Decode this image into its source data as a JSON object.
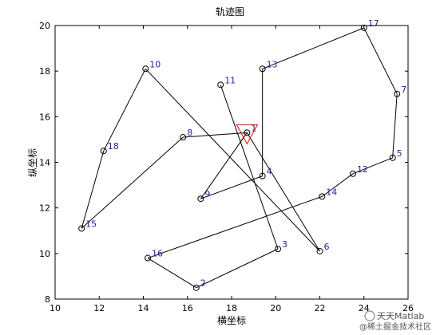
{
  "chart_data": {
    "type": "line",
    "title": "轨迹图",
    "xlabel": "横坐标",
    "ylabel": "纵坐标",
    "xlim": [
      10,
      26
    ],
    "ylim": [
      8,
      20
    ],
    "xticks": [
      10,
      12,
      14,
      16,
      18,
      20,
      22,
      24,
      26
    ],
    "yticks": [
      8,
      10,
      12,
      14,
      16,
      18,
      20
    ],
    "grid": false,
    "line_color": "#000000",
    "label_color": "#1f1fa0",
    "marker": "circle",
    "points": [
      {
        "label": "1",
        "x": 18.7,
        "y": 15.3
      },
      {
        "label": "2",
        "x": 16.4,
        "y": 8.5
      },
      {
        "label": "3",
        "x": 20.1,
        "y": 10.2
      },
      {
        "label": "4",
        "x": 19.4,
        "y": 13.4
      },
      {
        "label": "5",
        "x": 25.3,
        "y": 14.2
      },
      {
        "label": "6",
        "x": 22.0,
        "y": 10.1
      },
      {
        "label": "7",
        "x": 25.5,
        "y": 17.0
      },
      {
        "label": "8",
        "x": 15.8,
        "y": 15.1
      },
      {
        "label": "9",
        "x": 16.6,
        "y": 12.4
      },
      {
        "label": "10",
        "x": 14.1,
        "y": 18.1
      },
      {
        "label": "11",
        "x": 17.5,
        "y": 17.4
      },
      {
        "label": "12",
        "x": 23.5,
        "y": 13.5
      },
      {
        "label": "13",
        "x": 19.4,
        "y": 18.1
      },
      {
        "label": "14",
        "x": 22.1,
        "y": 12.5
      },
      {
        "label": "15",
        "x": 11.2,
        "y": 11.1
      },
      {
        "label": "16",
        "x": 14.2,
        "y": 9.8
      },
      {
        "label": "17",
        "x": 24.0,
        "y": 19.9
      },
      {
        "label": "18",
        "x": 12.2,
        "y": 14.5
      }
    ],
    "route": [
      "1",
      "8",
      "15",
      "18",
      "10",
      "6",
      "1",
      "9",
      "4",
      "13",
      "17",
      "7",
      "5",
      "12",
      "14",
      "16",
      "2",
      "3",
      "11"
    ],
    "start_marker": {
      "shape": "triangle-down",
      "color": "#ff0000",
      "x": 18.7,
      "y": 15.3
    }
  },
  "watermark": {
    "brand": "天天Matlab",
    "community": "@稀土掘金技术社区"
  }
}
